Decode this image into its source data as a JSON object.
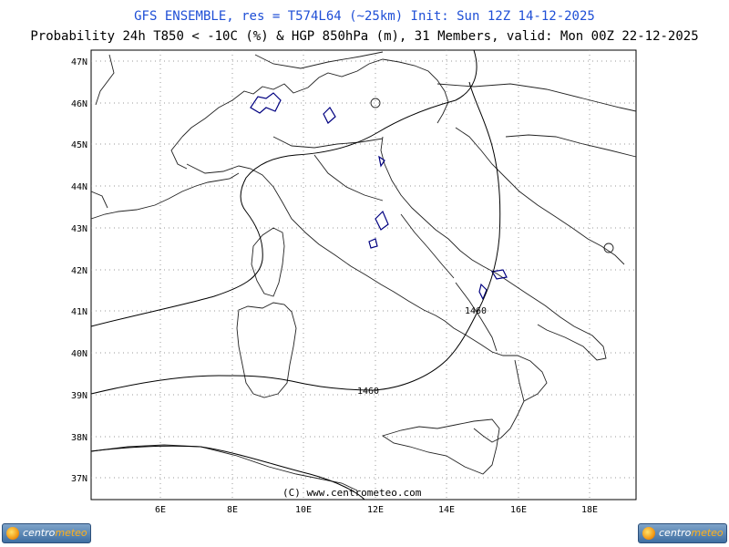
{
  "header": {
    "line1": "GFS ENSEMBLE, res = T574L64 (~25km)   Init: Sun 12Z 14-12-2025",
    "line2": "Probability 24h T850 < -10C (%) & HGP 850hPa (m), 31 Members, valid: Mon 00Z 22-12-2025"
  },
  "axes": {
    "lat_labels": [
      "47N",
      "46N",
      "45N",
      "44N",
      "43N",
      "42N",
      "41N",
      "40N",
      "39N",
      "38N",
      "37N"
    ],
    "lon_labels": [
      "6E",
      "8E",
      "10E",
      "12E",
      "14E",
      "16E",
      "18E"
    ]
  },
  "contours": [
    {
      "label": "1460"
    },
    {
      "label": "1460"
    }
  ],
  "copyright": "(C) www.centrometeo.com",
  "logos": {
    "left": {
      "part1": "centro",
      "part2": "meteo"
    },
    "right": {
      "part1": "centro",
      "part2": "meteo"
    }
  },
  "colors": {
    "title": "#1f4fd6",
    "probability_contour": "#000080",
    "coast": "#222222"
  }
}
